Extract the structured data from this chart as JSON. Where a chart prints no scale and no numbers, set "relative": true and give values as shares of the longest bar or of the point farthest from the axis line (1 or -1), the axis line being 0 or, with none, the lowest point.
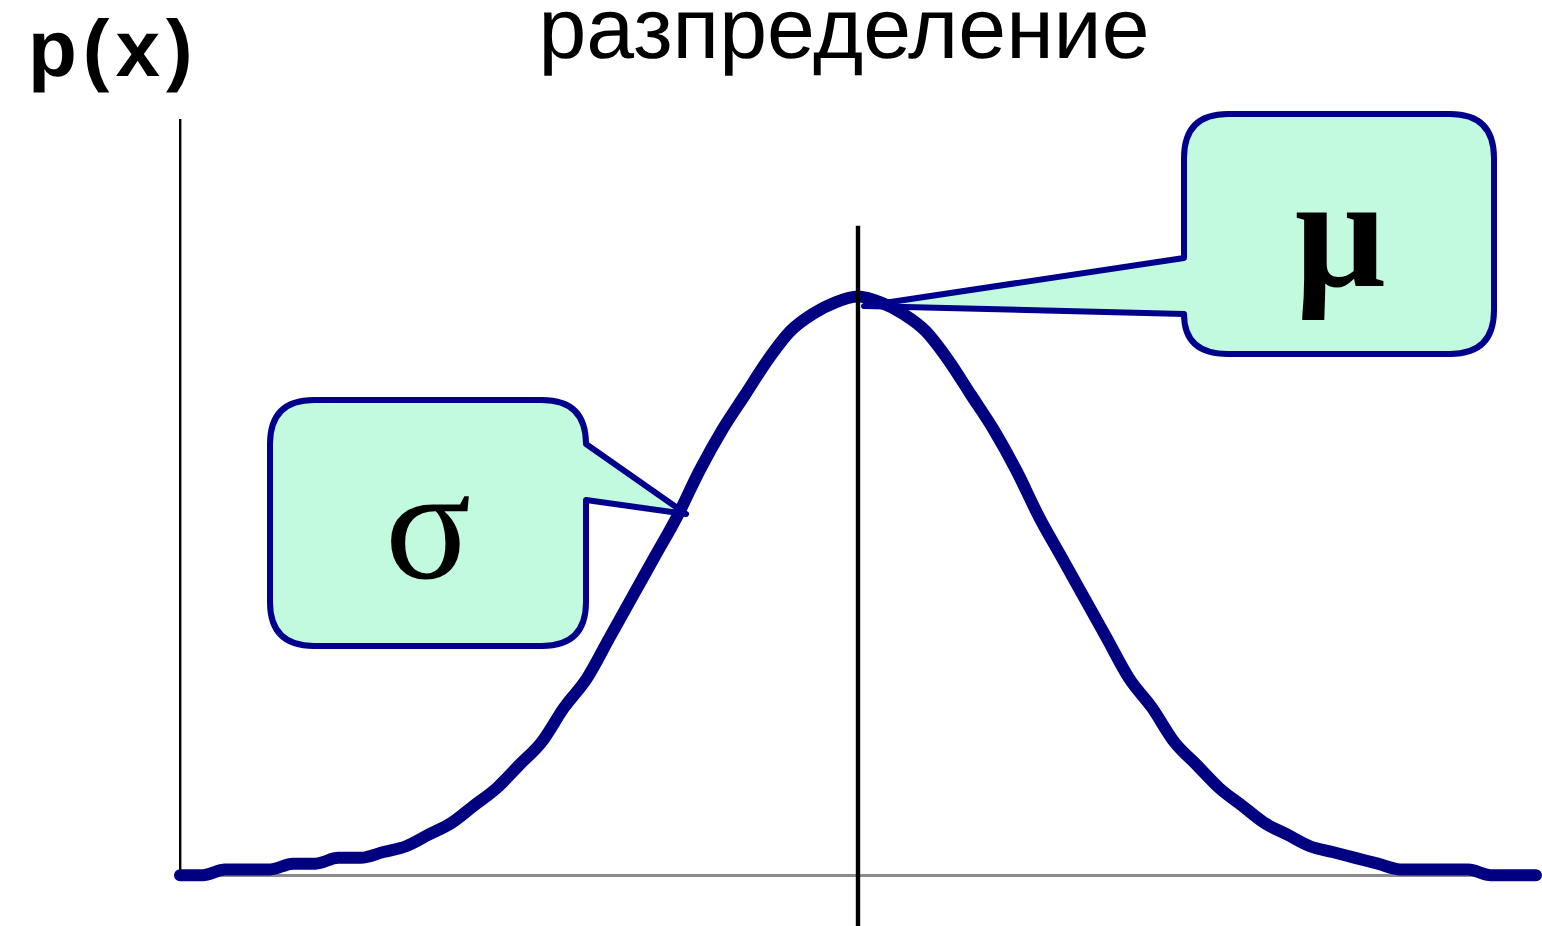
{
  "chart_data": {
    "type": "line",
    "title": "разпределение",
    "ylabel": "p(x)",
    "annotations": [
      "σ",
      "μ"
    ],
    "categories": [
      null,
      null,
      null,
      null,
      null,
      null,
      null,
      null,
      null,
      null,
      null,
      null,
      null,
      null,
      null,
      null,
      null,
      null,
      null,
      null,
      null,
      null,
      null,
      null,
      null,
      null,
      null,
      null,
      null,
      null,
      null,
      null,
      null,
      null,
      null,
      null,
      null,
      null,
      null,
      null,
      null,
      null,
      null,
      null,
      null,
      null,
      null,
      null,
      null,
      null,
      null,
      null,
      null,
      null,
      null,
      null,
      null,
      null,
      null,
      null,
      null
    ],
    "relative": true,
    "series": [
      {
        "color": "#000080",
        "values": [
          0,
          0,
          0.01,
          0.01,
          0.01,
          0.02,
          0.02,
          0.03,
          0.03,
          0.04,
          0.05,
          0.07,
          0.09,
          0.12,
          0.15,
          0.19,
          0.23,
          0.29,
          0.34,
          0.41,
          0.48,
          0.55,
          0.62,
          0.7,
          0.77,
          0.83,
          0.89,
          0.94,
          0.97,
          0.99,
          1,
          0.99,
          0.97,
          0.94,
          0.89,
          0.83,
          0.77,
          0.7,
          0.62,
          0.55,
          0.48,
          0.41,
          0.34,
          0.29,
          0.23,
          0.19,
          0.15,
          0.12,
          0.09,
          0.07,
          0.05,
          0.04,
          0.03,
          0.02,
          0.01,
          0.01,
          0.01,
          0.01,
          0,
          0,
          0
        ]
      }
    ]
  }
}
